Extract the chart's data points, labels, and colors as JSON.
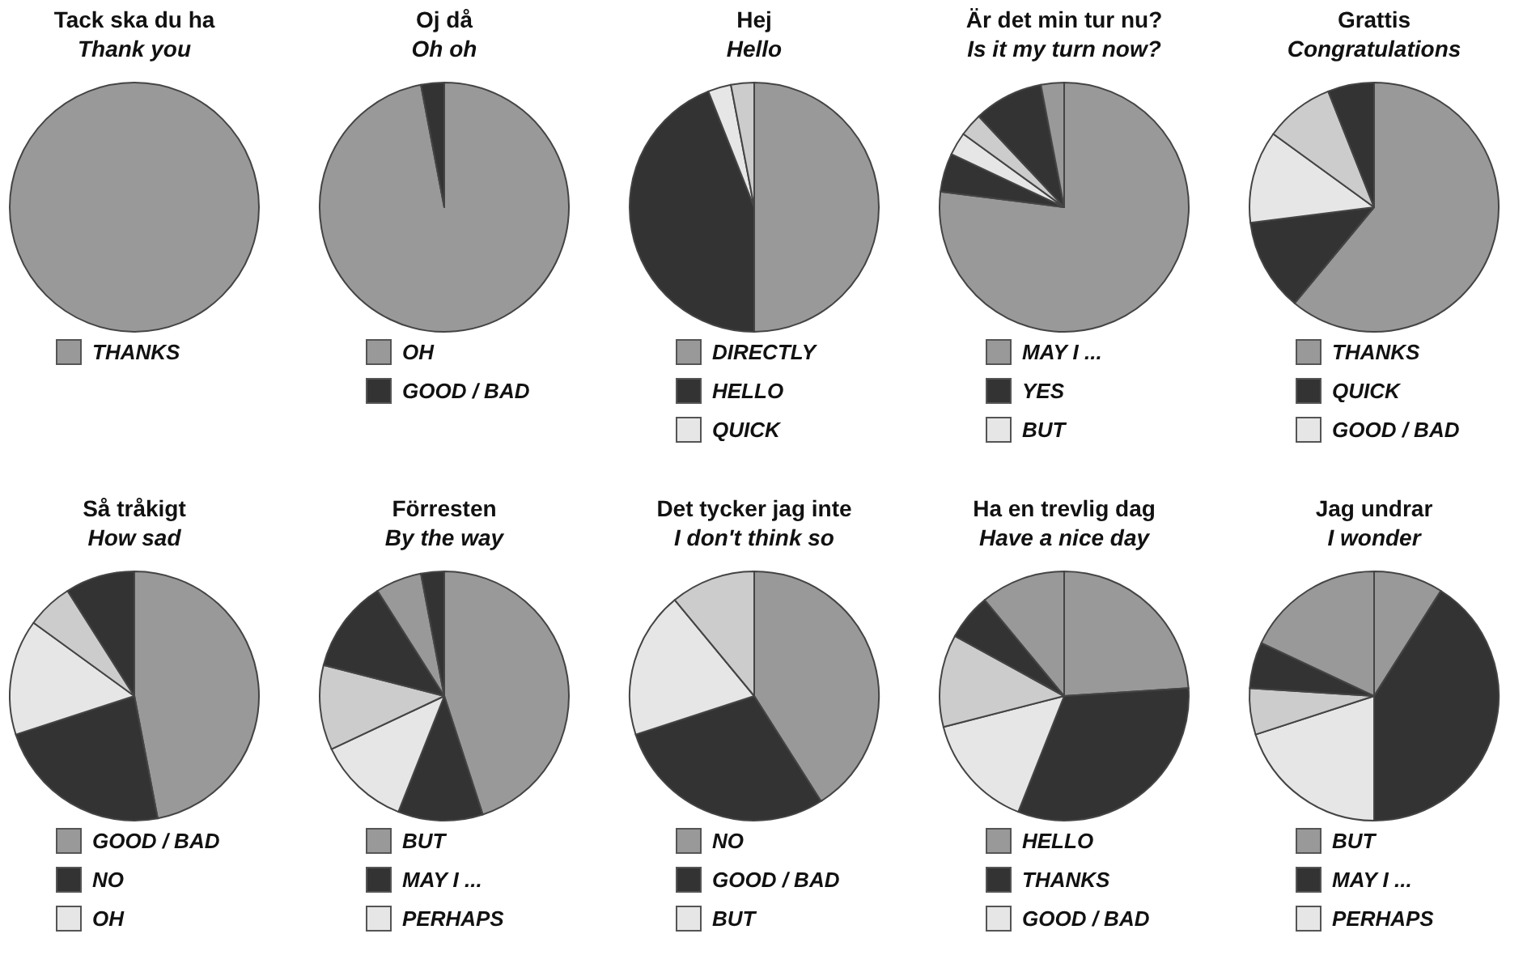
{
  "chart_data": [
    {
      "type": "pie",
      "title": "Tack ska du ha",
      "subtitle": "Thank you",
      "categories": [
        "THANKS"
      ],
      "values": [
        100
      ],
      "colors": [
        "#999999"
      ],
      "legend": "bottom"
    },
    {
      "type": "pie",
      "title": "Oj då",
      "subtitle": "Oh oh",
      "categories": [
        "OH",
        "GOOD / BAD"
      ],
      "values": [
        97,
        3
      ],
      "colors": [
        "#999999",
        "#333333"
      ],
      "legend": "bottom"
    },
    {
      "type": "pie",
      "title": "Hej",
      "subtitle": "Hello",
      "categories": [
        "DIRECTLY",
        "HELLO",
        "QUICK",
        null
      ],
      "values": [
        50,
        44,
        3,
        3
      ],
      "colors": [
        "#999999",
        "#333333",
        "#e6e6e6",
        "#cccccc"
      ],
      "legend": "bottom"
    },
    {
      "type": "pie",
      "title": "Är det min tur nu?",
      "subtitle": "Is it my turn now?",
      "categories": [
        "MAY I ...",
        "YES",
        "BUT",
        null,
        null,
        null
      ],
      "values": [
        77,
        5,
        3,
        3,
        9,
        3
      ],
      "colors": [
        "#999999",
        "#333333",
        "#e6e6e6",
        "#cccccc",
        "#333333",
        "#999999"
      ],
      "legend": "bottom"
    },
    {
      "type": "pie",
      "title": "Grattis",
      "subtitle": "Congratulations",
      "categories": [
        "THANKS",
        "QUICK",
        "GOOD / BAD",
        null,
        null
      ],
      "values": [
        61,
        12,
        12,
        9,
        6
      ],
      "colors": [
        "#999999",
        "#333333",
        "#e6e6e6",
        "#cccccc",
        "#333333"
      ],
      "legend": "bottom"
    },
    {
      "type": "pie",
      "title": "Så tråkigt",
      "subtitle": "How sad",
      "categories": [
        "GOOD / BAD",
        "NO",
        "OH",
        null,
        null
      ],
      "values": [
        47,
        23,
        15,
        6,
        9
      ],
      "colors": [
        "#999999",
        "#333333",
        "#e6e6e6",
        "#cccccc",
        "#333333"
      ],
      "legend": "bottom"
    },
    {
      "type": "pie",
      "title": "Förresten",
      "subtitle": "By the way",
      "categories": [
        "BUT",
        "MAY I ...",
        "PERHAPS",
        null,
        null,
        null,
        null
      ],
      "values": [
        45,
        11,
        12,
        11,
        12,
        6,
        3
      ],
      "colors": [
        "#999999",
        "#333333",
        "#e6e6e6",
        "#cccccc",
        "#333333",
        "#999999",
        "#333333"
      ],
      "legend": "bottom"
    },
    {
      "type": "pie",
      "title": "Det tycker jag inte",
      "subtitle": "I don't think so",
      "categories": [
        "NO",
        "GOOD / BAD",
        "BUT",
        null
      ],
      "values": [
        41,
        29,
        19,
        11
      ],
      "colors": [
        "#999999",
        "#333333",
        "#e6e6e6",
        "#cccccc"
      ],
      "legend": "bottom"
    },
    {
      "type": "pie",
      "title": "Ha en trevlig dag",
      "subtitle": "Have a nice day",
      "categories": [
        "HELLO",
        "THANKS",
        "GOOD / BAD",
        null,
        null,
        null
      ],
      "values": [
        24,
        32,
        15,
        12,
        6,
        11
      ],
      "colors": [
        "#999999",
        "#333333",
        "#e6e6e6",
        "#cccccc",
        "#333333",
        "#999999"
      ],
      "legend": "bottom"
    },
    {
      "type": "pie",
      "title": "Jag undrar",
      "subtitle": "I wonder",
      "categories": [
        "BUT",
        "MAY I ...",
        "PERHAPS",
        null,
        null,
        null
      ],
      "values": [
        9,
        41,
        20,
        6,
        6,
        18
      ],
      "colors": [
        "#999999",
        "#333333",
        "#e6e6e6",
        "#cccccc",
        "#333333",
        "#999999"
      ],
      "legend": "bottom"
    }
  ]
}
